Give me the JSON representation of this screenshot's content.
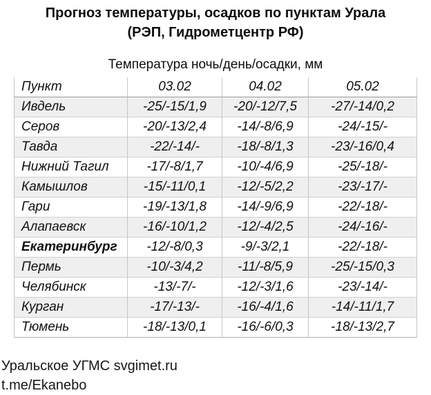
{
  "title": {
    "line1": "Прогноз температуры, осадков по пунктам Урала",
    "line2": "(РЭП, Гидрометцентр РФ)"
  },
  "subtitle": "Температура ночь/день/осадки, мм",
  "table": {
    "columns": [
      "Пункт",
      "03.02",
      "04.02",
      "05.02"
    ],
    "rows": [
      {
        "city": "Ивдель",
        "bold": false,
        "values": [
          "-25/-15/1,9",
          "-20/-12/7,5",
          "-27/-14/0,2"
        ]
      },
      {
        "city": "Серов",
        "bold": false,
        "values": [
          "-20/-13/2,4",
          "-14/-8/6,9",
          "-24/-15/-"
        ]
      },
      {
        "city": "Тавда",
        "bold": false,
        "values": [
          "-22/-14/-",
          "-18/-8/1,3",
          "-23/-16/0,4"
        ]
      },
      {
        "city": "Нижний Тагил",
        "bold": false,
        "values": [
          "-17/-8/1,7",
          "-10/-4/6,9",
          "-25/-18/-"
        ]
      },
      {
        "city": "Камышлов",
        "bold": false,
        "values": [
          "-15/-11/0,1",
          "-12/-5/2,2",
          "-23/-17/-"
        ]
      },
      {
        "city": "Гари",
        "bold": false,
        "values": [
          "-19/-13/1,8",
          "-14/-9/6,9",
          "-22/-18/-"
        ]
      },
      {
        "city": "Алапаевск",
        "bold": false,
        "values": [
          "-16/-10/1,2",
          "-12/-4/2,5",
          "-24/-16/-"
        ]
      },
      {
        "city": "Екатеринбург",
        "bold": true,
        "values": [
          "-12/-8/0,3",
          "-9/-3/2,1",
          "-22/-18/-"
        ]
      },
      {
        "city": "Пермь",
        "bold": false,
        "values": [
          "-10/-3/4,2",
          "-11/-8/5,9",
          "-25/-15/0,3"
        ]
      },
      {
        "city": "Челябинск",
        "bold": false,
        "values": [
          "-13/-7/-",
          "-12/-3/1,6",
          "-23/-14/-"
        ]
      },
      {
        "city": "Курган",
        "bold": false,
        "values": [
          "-17/-13/-",
          "-16/-4/1,6",
          "-14/-11/1,7"
        ]
      },
      {
        "city": "Тюмень",
        "bold": false,
        "values": [
          "-18/-13/0,1",
          "-16/-6/0,3",
          "-18/-13/2,7"
        ]
      }
    ]
  },
  "footer": {
    "line1": "Уральское УГМС svgimet.ru",
    "line2": "t.me/Ekanebo"
  },
  "colors": {
    "row_alt_background": "#efefef",
    "table_border": "#c6c6c6",
    "header_underline": "#999999",
    "text": "#111111"
  }
}
